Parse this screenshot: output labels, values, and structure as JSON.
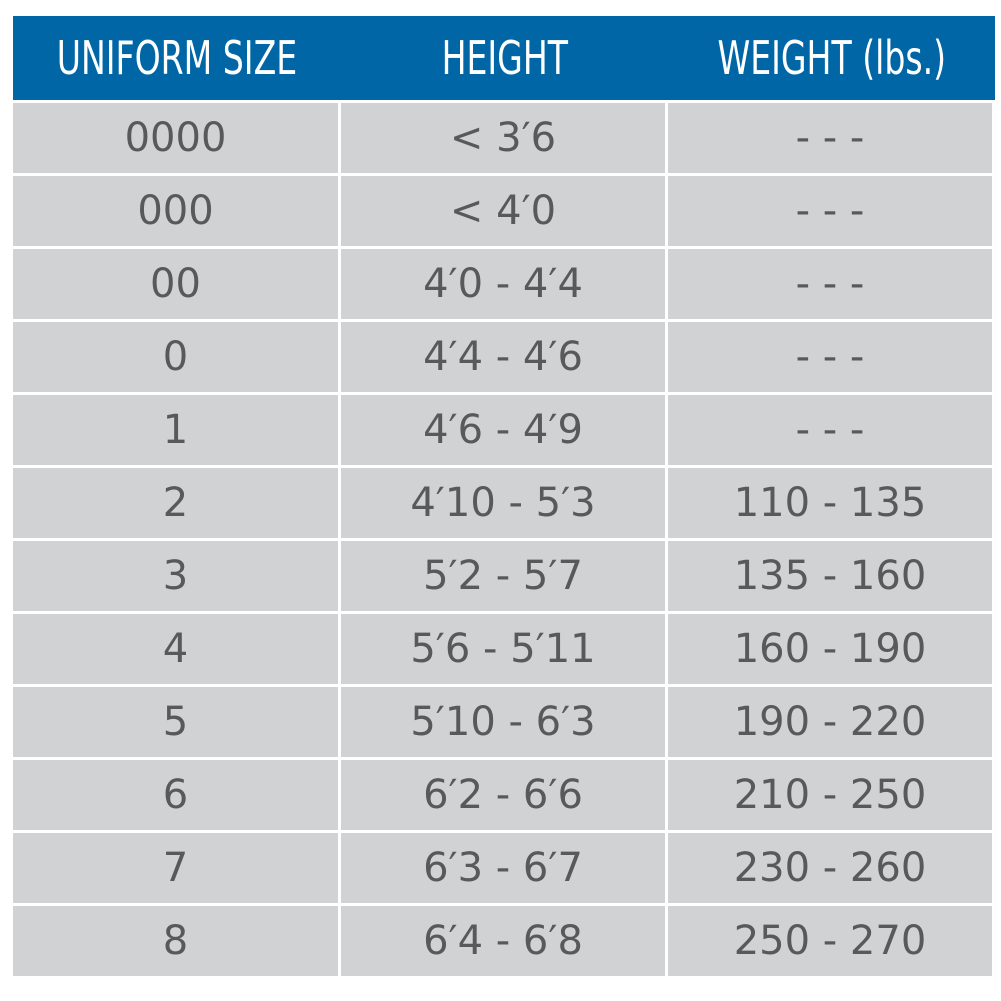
{
  "header_color": "#0066a6",
  "columns": [
    "UNIFORM SIZE",
    "HEIGHT",
    "WEIGHT (lbs.)"
  ],
  "rows": [
    [
      "0000",
      "< 3′6",
      "- - -"
    ],
    [
      "000",
      "< 4′0",
      "- - -"
    ],
    [
      "00",
      "4′0 - 4′4",
      "- - -"
    ],
    [
      "0",
      "4′4 - 4′6",
      "- - -"
    ],
    [
      "1",
      "4′6 - 4′9",
      "- - -"
    ],
    [
      "2",
      "4′10 - 5′3",
      "110 - 135"
    ],
    [
      "3",
      "5′2 - 5′7",
      "135 - 160"
    ],
    [
      "4",
      "5′6 - 5′11",
      "160 - 190"
    ],
    [
      "5",
      "5′10 - 6′3",
      "190 - 220"
    ],
    [
      "6",
      "6′2 - 6′6",
      "210 - 250"
    ],
    [
      "7",
      "6′3 - 6′7",
      "230 - 260"
    ],
    [
      "8",
      "6′4 - 6′8",
      "250 - 270"
    ]
  ]
}
